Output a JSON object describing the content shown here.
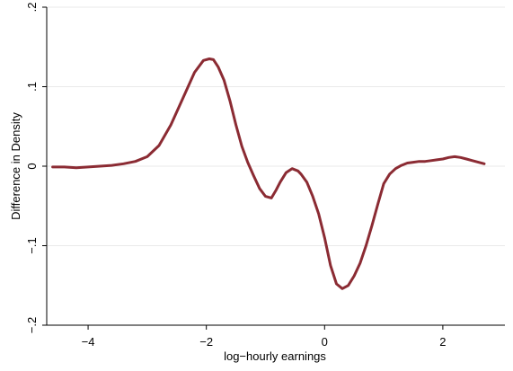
{
  "chart_data": {
    "type": "line",
    "title": "",
    "xlabel": "log−hourly earnings",
    "ylabel": "Difference in Density",
    "xlim": [
      -4.7,
      3.05
    ],
    "ylim": [
      -0.2,
      0.2
    ],
    "xticks": [
      -4,
      -2,
      0,
      2
    ],
    "xtick_labels": [
      "−4",
      "−2",
      "0",
      "2"
    ],
    "yticks": [
      -0.2,
      -0.1,
      0,
      0.1,
      0.2
    ],
    "ytick_labels": [
      "−.2",
      "−.1",
      "0",
      ".1",
      ".2"
    ],
    "grid": "horizontal",
    "legend": "none",
    "series": [
      {
        "color": "#8b2b33",
        "x": [
          -4.6,
          -4.4,
          -4.2,
          -4.0,
          -3.8,
          -3.6,
          -3.4,
          -3.2,
          -3.0,
          -2.8,
          -2.6,
          -2.4,
          -2.2,
          -2.05,
          -1.95,
          -1.88,
          -1.8,
          -1.7,
          -1.6,
          -1.5,
          -1.4,
          -1.3,
          -1.2,
          -1.1,
          -1.0,
          -0.9,
          -0.82,
          -0.75,
          -0.65,
          -0.55,
          -0.45,
          -0.4,
          -0.3,
          -0.2,
          -0.1,
          0.0,
          0.1,
          0.2,
          0.3,
          0.4,
          0.5,
          0.6,
          0.7,
          0.8,
          0.9,
          1.0,
          1.1,
          1.2,
          1.3,
          1.4,
          1.5,
          1.6,
          1.7,
          1.8,
          1.9,
          2.0,
          2.1,
          2.2,
          2.3,
          2.4,
          2.5,
          2.6,
          2.7
        ],
        "y": [
          -0.001,
          -0.001,
          -0.002,
          -0.001,
          0.0,
          0.001,
          0.003,
          0.006,
          0.012,
          0.026,
          0.052,
          0.085,
          0.118,
          0.133,
          0.135,
          0.134,
          0.125,
          0.108,
          0.082,
          0.052,
          0.025,
          0.005,
          -0.012,
          -0.028,
          -0.038,
          -0.04,
          -0.03,
          -0.02,
          -0.008,
          -0.003,
          -0.006,
          -0.01,
          -0.02,
          -0.038,
          -0.06,
          -0.09,
          -0.125,
          -0.148,
          -0.154,
          -0.15,
          -0.138,
          -0.122,
          -0.1,
          -0.075,
          -0.048,
          -0.022,
          -0.01,
          -0.003,
          0.001,
          0.004,
          0.005,
          0.006,
          0.006,
          0.007,
          0.008,
          0.009,
          0.011,
          0.012,
          0.011,
          0.009,
          0.007,
          0.005,
          0.003
        ]
      }
    ]
  }
}
